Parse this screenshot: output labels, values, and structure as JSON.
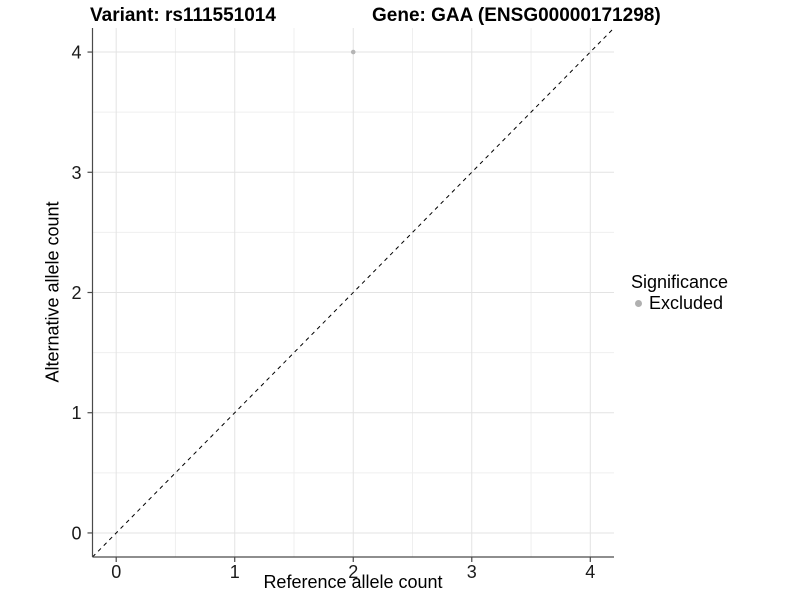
{
  "header": {
    "left_title": "Variant: rs111551014",
    "right_title": "Gene: GAA (ENSG00000171298)"
  },
  "chart_data": {
    "type": "scatter",
    "xlabel": "Reference allele count",
    "ylabel": "Alternative allele count",
    "xlim": [
      -0.2,
      4.2
    ],
    "ylim": [
      -0.2,
      4.2
    ],
    "x_ticks": [
      0,
      1,
      2,
      3,
      4
    ],
    "y_ticks": [
      0,
      1,
      2,
      3,
      4
    ],
    "grid": true,
    "points": [
      {
        "x": 2,
        "y": 4,
        "series": "Excluded"
      }
    ],
    "reference_line": {
      "kind": "identity",
      "style": "dashed"
    },
    "legend": {
      "title": "Significance",
      "position": "right",
      "items": [
        {
          "label": "Excluded",
          "color": "#b0b0b0"
        }
      ]
    },
    "colors": {
      "point": "#b5b5b5",
      "grid_major": "#e3e3e3",
      "grid_minor": "#efefef",
      "axis": "#4a4a4a",
      "reference_line": "#000000",
      "tick_text": "#1a1a1a",
      "background": "#ffffff"
    }
  }
}
